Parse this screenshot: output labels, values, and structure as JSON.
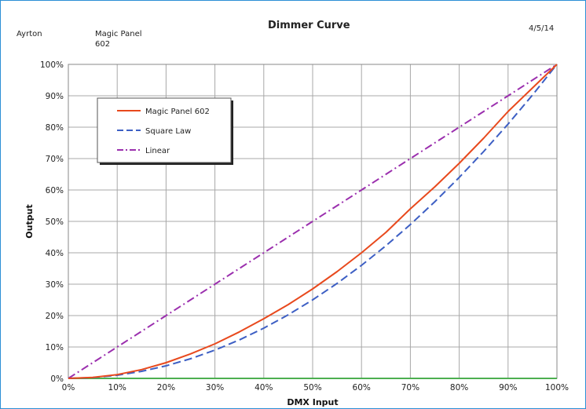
{
  "header": {
    "manufacturer": "Ayrton",
    "fixture_line1": "Magic Panel",
    "fixture_line2": "602",
    "date": "4/5/14"
  },
  "chart_data": {
    "type": "line",
    "title": "Dimmer Curve",
    "xlabel": "DMX Input",
    "ylabel": "Output",
    "xlim": [
      0,
      100
    ],
    "ylim": [
      0,
      100
    ],
    "x_ticks": [
      "0%",
      "10%",
      "20%",
      "30%",
      "40%",
      "50%",
      "60%",
      "70%",
      "80%",
      "90%",
      "100%"
    ],
    "y_ticks": [
      "0%",
      "10%",
      "20%",
      "30%",
      "40%",
      "50%",
      "60%",
      "70%",
      "80%",
      "90%",
      "100%"
    ],
    "grid": true,
    "legend_position": "top-left",
    "series": [
      {
        "name": "Magic Panel 602",
        "color": "#e8491d",
        "dash": "solid",
        "x": [
          0,
          5,
          10,
          15,
          20,
          25,
          30,
          35,
          40,
          45,
          50,
          55,
          60,
          65,
          70,
          75,
          80,
          85,
          90,
          95,
          100
        ],
        "y": [
          0,
          0.3,
          1.2,
          2.8,
          5,
          7.8,
          11,
          14.8,
          19,
          23.5,
          28.5,
          34,
          40,
          46.5,
          54,
          61,
          68.5,
          76.5,
          85,
          92.5,
          100
        ]
      },
      {
        "name": "Square Law",
        "color": "#3d5fc4",
        "dash": "dash",
        "x": [
          0,
          5,
          10,
          15,
          20,
          25,
          30,
          35,
          40,
          45,
          50,
          55,
          60,
          65,
          70,
          75,
          80,
          85,
          90,
          95,
          100
        ],
        "y": [
          0,
          0.25,
          1,
          2.25,
          4,
          6.25,
          9,
          12.25,
          16,
          20.25,
          25,
          30.25,
          36,
          42.25,
          49,
          56.25,
          64,
          72.25,
          81,
          90.25,
          100
        ]
      },
      {
        "name": "Linear",
        "color": "#9b2fae",
        "dash": "dashdot",
        "x": [
          0,
          100
        ],
        "y": [
          0,
          100
        ]
      }
    ],
    "baseline_color": "#4caf50"
  }
}
